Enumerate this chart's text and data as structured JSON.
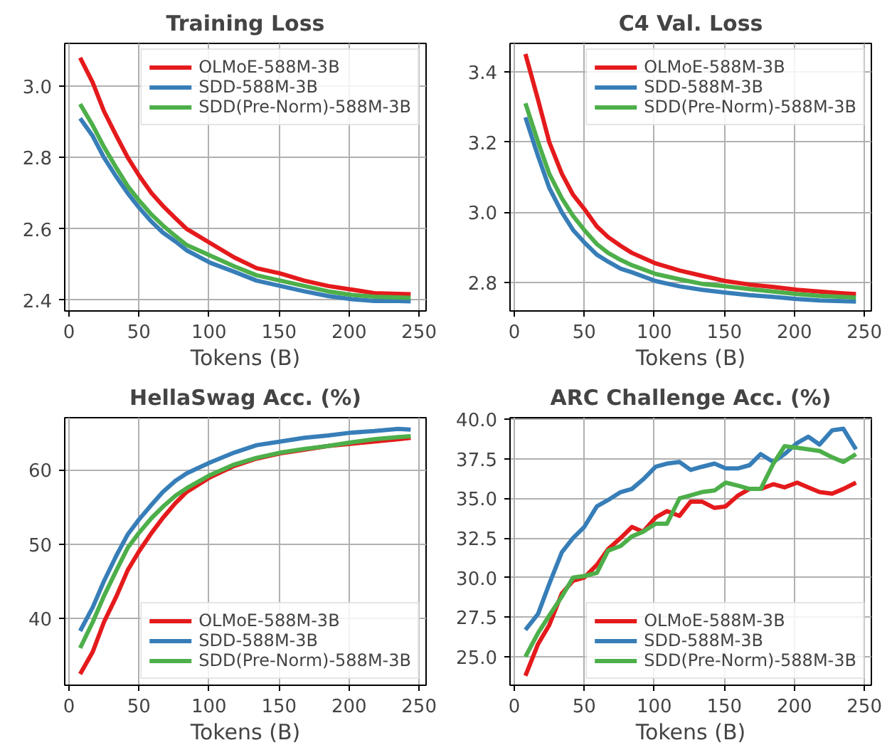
{
  "chart_data": [
    {
      "type": "line",
      "title": "Training Loss",
      "xlabel": "Tokens (B)",
      "x": [
        8,
        17,
        25,
        34,
        42,
        50,
        59,
        67,
        76,
        84,
        101,
        118,
        134,
        151,
        168,
        185,
        202,
        218,
        235,
        244
      ],
      "xlim": [
        -3,
        255
      ],
      "xticks": [
        0,
        50,
        100,
        150,
        200,
        250
      ],
      "ylim": [
        2.37,
        3.12
      ],
      "yticks": [
        2.4,
        2.6,
        2.8,
        {
          "value": 3,
          "label": "3.0"
        }
      ],
      "grid": true,
      "legend": "top right",
      "series": [
        {
          "name": "OLMoE-588M-3B",
          "color": "#e41a1c",
          "values": [
            3.08,
            3.01,
            2.93,
            2.86,
            2.8,
            2.75,
            2.7,
            2.665,
            2.63,
            2.6,
            2.56,
            2.52,
            2.49,
            2.475,
            2.455,
            2.44,
            2.43,
            2.42,
            2.418,
            2.417
          ]
        },
        {
          "name": "SDD-588M-3B",
          "color": "#377eb8",
          "values": [
            2.91,
            2.86,
            2.8,
            2.745,
            2.7,
            2.66,
            2.62,
            2.59,
            2.565,
            2.54,
            2.505,
            2.48,
            2.455,
            2.44,
            2.425,
            2.412,
            2.403,
            2.398,
            2.398,
            2.397
          ]
        },
        {
          "name": "SDD(Pre-Norm)-588M-3B",
          "color": "#4daf4a",
          "values": [
            2.95,
            2.89,
            2.83,
            2.77,
            2.72,
            2.68,
            2.64,
            2.61,
            2.58,
            2.555,
            2.525,
            2.495,
            2.47,
            2.455,
            2.44,
            2.425,
            2.415,
            2.41,
            2.408,
            2.407
          ]
        }
      ]
    },
    {
      "type": "line",
      "title": "C4 Val. Loss",
      "xlabel": "Tokens (B)",
      "x": [
        8,
        17,
        25,
        34,
        42,
        50,
        59,
        67,
        76,
        84,
        101,
        118,
        134,
        151,
        168,
        185,
        202,
        218,
        235,
        244
      ],
      "xlim": [
        -3,
        255
      ],
      "xticks": [
        0,
        50,
        100,
        150,
        200,
        250
      ],
      "ylim": [
        2.72,
        3.48
      ],
      "yticks": [
        2.8,
        {
          "value": 3,
          "label": "3.0"
        },
        3.2,
        3.4
      ],
      "grid": true,
      "legend": "top right",
      "series": [
        {
          "name": "OLMoE-588M-3B",
          "color": "#e41a1c",
          "values": [
            3.45,
            3.32,
            3.2,
            3.11,
            3.05,
            3.01,
            2.96,
            2.93,
            2.905,
            2.885,
            2.855,
            2.835,
            2.82,
            2.805,
            2.795,
            2.788,
            2.78,
            2.775,
            2.77,
            2.768
          ]
        },
        {
          "name": "SDD-588M-3B",
          "color": "#377eb8",
          "values": [
            3.27,
            3.16,
            3.07,
            3.0,
            2.95,
            2.915,
            2.88,
            2.86,
            2.84,
            2.83,
            2.805,
            2.79,
            2.78,
            2.772,
            2.765,
            2.76,
            2.754,
            2.75,
            2.748,
            2.747
          ]
        },
        {
          "name": "SDD(Pre-Norm)-588M-3B",
          "color": "#4daf4a",
          "values": [
            3.31,
            3.2,
            3.11,
            3.04,
            2.99,
            2.95,
            2.91,
            2.885,
            2.865,
            2.85,
            2.825,
            2.81,
            2.797,
            2.79,
            2.782,
            2.775,
            2.768,
            2.763,
            2.76,
            2.758
          ]
        }
      ]
    },
    {
      "type": "line",
      "title": "HellaSwag Acc. (%)",
      "xlabel": "Tokens (B)",
      "x": [
        8,
        17,
        25,
        34,
        42,
        50,
        59,
        67,
        76,
        84,
        101,
        118,
        134,
        151,
        168,
        185,
        202,
        218,
        235,
        244
      ],
      "xlim": [
        -3,
        255
      ],
      "xticks": [
        0,
        50,
        100,
        150,
        200,
        250
      ],
      "ylim": [
        31,
        67
      ],
      "yticks": [
        40,
        50,
        60
      ],
      "grid": true,
      "legend": "bottom right",
      "series": [
        {
          "name": "OLMoE-588M-3B",
          "color": "#e41a1c",
          "values": [
            32.5,
            35.5,
            39.5,
            43,
            46.5,
            49,
            51.5,
            53.5,
            55.5,
            57,
            59,
            60.5,
            61.5,
            62.2,
            62.7,
            63.2,
            63.5,
            63.8,
            64.1,
            64.3
          ]
        },
        {
          "name": "SDD-588M-3B",
          "color": "#377eb8",
          "values": [
            38.3,
            41.5,
            45,
            48.5,
            51.3,
            53.3,
            55.3,
            57,
            58.5,
            59.5,
            61,
            62.3,
            63.3,
            63.8,
            64.3,
            64.6,
            65,
            65.2,
            65.5,
            65.4
          ]
        },
        {
          "name": "SDD(Pre-Norm)-588M-3B",
          "color": "#4daf4a",
          "values": [
            36,
            39.5,
            43,
            46.5,
            49.5,
            51.5,
            53.5,
            55,
            56.5,
            57.5,
            59.3,
            60.7,
            61.6,
            62.3,
            62.8,
            63.2,
            63.7,
            64.1,
            64.4,
            64.5
          ]
        }
      ]
    },
    {
      "type": "line",
      "title": "ARC Challenge Acc. (%)",
      "xlabel": "Tokens (B)",
      "x": [
        8,
        17,
        25,
        34,
        42,
        50,
        59,
        67,
        76,
        84,
        92,
        101,
        109,
        118,
        126,
        134,
        143,
        151,
        160,
        168,
        176,
        185,
        193,
        202,
        210,
        218,
        227,
        235,
        244
      ],
      "xlim": [
        -3,
        255
      ],
      "xticks": [
        0,
        50,
        100,
        150,
        200,
        250
      ],
      "ylim": [
        23.2,
        40.1
      ],
      "yticks": [
        {
          "value": 25,
          "label": "25.0"
        },
        27.5,
        {
          "value": 30,
          "label": "30.0"
        },
        32.5,
        {
          "value": 35,
          "label": "35.0"
        },
        37.5,
        {
          "value": 40,
          "label": "40.0"
        }
      ],
      "grid": true,
      "legend": "bottom right",
      "series": [
        {
          "name": "OLMoE-588M-3B",
          "color": "#e41a1c",
          "values": [
            23.8,
            25.8,
            27.0,
            29.0,
            29.8,
            30.0,
            30.8,
            31.8,
            32.5,
            33.2,
            32.9,
            33.8,
            34.2,
            33.9,
            34.8,
            34.8,
            34.4,
            34.5,
            35.2,
            35.6,
            35.6,
            35.9,
            35.7,
            36.0,
            35.7,
            35.4,
            35.3,
            35.6,
            36.0
          ]
        },
        {
          "name": "SDD-588M-3B",
          "color": "#377eb8",
          "values": [
            26.7,
            27.7,
            29.6,
            31.6,
            32.5,
            33.2,
            34.5,
            34.9,
            35.4,
            35.6,
            36.2,
            37.0,
            37.2,
            37.3,
            36.8,
            37.0,
            37.2,
            36.9,
            36.9,
            37.1,
            37.8,
            37.3,
            37.8,
            38.5,
            38.9,
            38.4,
            39.3,
            39.4,
            38.1
          ]
        },
        {
          "name": "SDD(Pre-Norm)-588M-3B",
          "color": "#4daf4a",
          "values": [
            25.0,
            26.5,
            27.6,
            28.8,
            30.0,
            30.1,
            30.3,
            31.7,
            32.0,
            32.6,
            32.9,
            33.4,
            33.4,
            35.0,
            35.2,
            35.4,
            35.5,
            36.0,
            35.8,
            35.6,
            35.6,
            37.2,
            38.3,
            38.2,
            38.1,
            38.0,
            37.6,
            37.3,
            37.8
          ]
        }
      ]
    }
  ]
}
